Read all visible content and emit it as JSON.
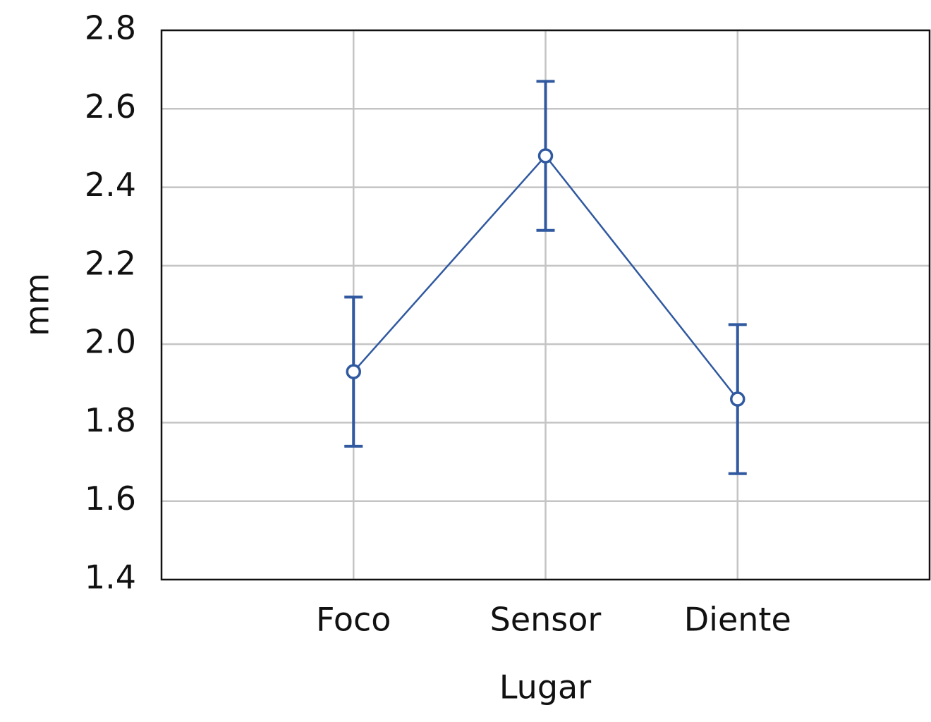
{
  "chart_data": {
    "type": "line",
    "x_label": "Lugar",
    "y_label": "mm",
    "categories": [
      "Foco",
      "Sensor",
      "Diente"
    ],
    "series": [
      {
        "name": "mm",
        "color": "#3059a0",
        "values": [
          1.93,
          2.48,
          1.86
        ],
        "errors": [
          0.19,
          0.19,
          0.19
        ]
      }
    ],
    "ylim": [
      1.4,
      2.8
    ],
    "yticks": [
      1.4,
      1.6,
      1.8,
      {
        "value": 2,
        "label": "2.0"
      },
      2.2,
      2.4,
      2.6,
      2.8
    ],
    "grid": true
  }
}
